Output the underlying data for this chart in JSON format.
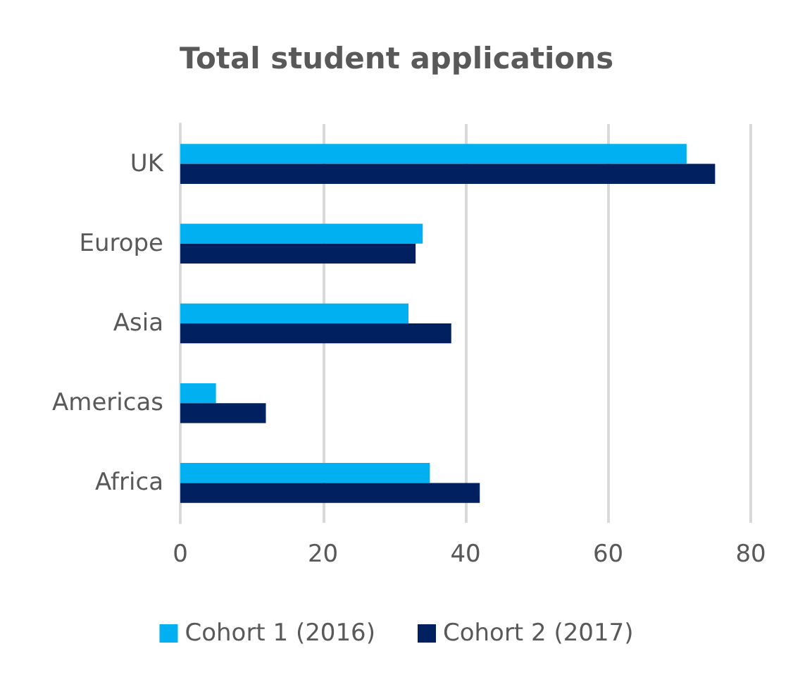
{
  "chart_data": {
    "type": "bar",
    "orientation": "horizontal",
    "title": "Total student applications",
    "categories": [
      "UK",
      "Europe",
      "Asia",
      "Americas",
      "Africa"
    ],
    "series": [
      {
        "name": "Cohort 1 (2016)",
        "color": "#00b0f0",
        "values": [
          71,
          34,
          32,
          5,
          35
        ]
      },
      {
        "name": "Cohort 2 (2017)",
        "color": "#002060",
        "values": [
          75,
          33,
          38,
          12,
          42
        ]
      }
    ],
    "xlim": [
      0,
      80
    ],
    "xticks": [
      0,
      20,
      40,
      60,
      80
    ],
    "grid": "x",
    "legend": "bottom"
  }
}
